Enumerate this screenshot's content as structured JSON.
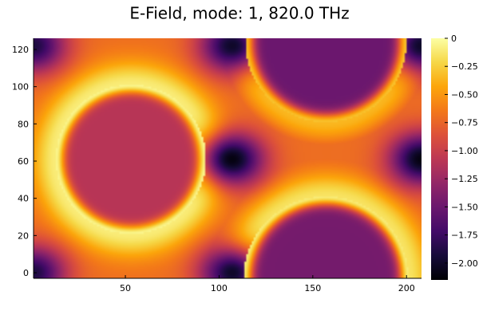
{
  "chart_data": {
    "type": "heatmap",
    "title": "E-Field, mode: 1, 820.0 THz",
    "xlabel": "",
    "ylabel": "",
    "xlim": [
      1,
      208
    ],
    "ylim": [
      -3,
      126
    ],
    "xticks": [
      50,
      100,
      150,
      200
    ],
    "xtick_labels": [
      "50",
      "100",
      "150",
      "200"
    ],
    "yticks": [
      0,
      20,
      40,
      60,
      80,
      100,
      120
    ],
    "ytick_labels": [
      "0",
      "20",
      "40",
      "60",
      "80",
      "100",
      "120"
    ],
    "colormap": "inferno",
    "colorbar": {
      "range": [
        -2.15,
        0.0
      ],
      "ticks": [
        0,
        -0.25,
        -0.5,
        -0.75,
        -1.0,
        -1.25,
        -1.5,
        -1.75,
        -2.0
      ],
      "tick_labels": [
        "0",
        "−0.25",
        "−0.50",
        "−0.75",
        "−1.00",
        "−1.25",
        "−1.50",
        "−1.75",
        "−2.00"
      ]
    },
    "regions": [
      {
        "name": "left-circle",
        "center": [
          53,
          61
        ],
        "radius": 40,
        "interior_value": -1.1,
        "rim_value": -0.05
      },
      {
        "name": "top-right-circle",
        "center": [
          157,
          124
        ],
        "radius": 43,
        "interior_value": -1.5,
        "rim_value": -0.3
      },
      {
        "name": "bottom-right-circle",
        "center": [
          157,
          -3
        ],
        "radius": 44,
        "interior_value": -1.45,
        "rim_value": -0.1
      }
    ],
    "field_minima": [
      {
        "x": 107,
        "y": 61,
        "value": -2.1
      },
      {
        "x": 107,
        "y": 0,
        "value": -2.0
      },
      {
        "x": 107,
        "y": 122,
        "value": -2.0
      },
      {
        "x": 1,
        "y": 0,
        "value": -1.9
      },
      {
        "x": 1,
        "y": 122,
        "value": -1.9
      },
      {
        "x": 208,
        "y": 61,
        "value": -2.1
      },
      {
        "x": 208,
        "y": 122,
        "value": -2.0
      }
    ]
  }
}
